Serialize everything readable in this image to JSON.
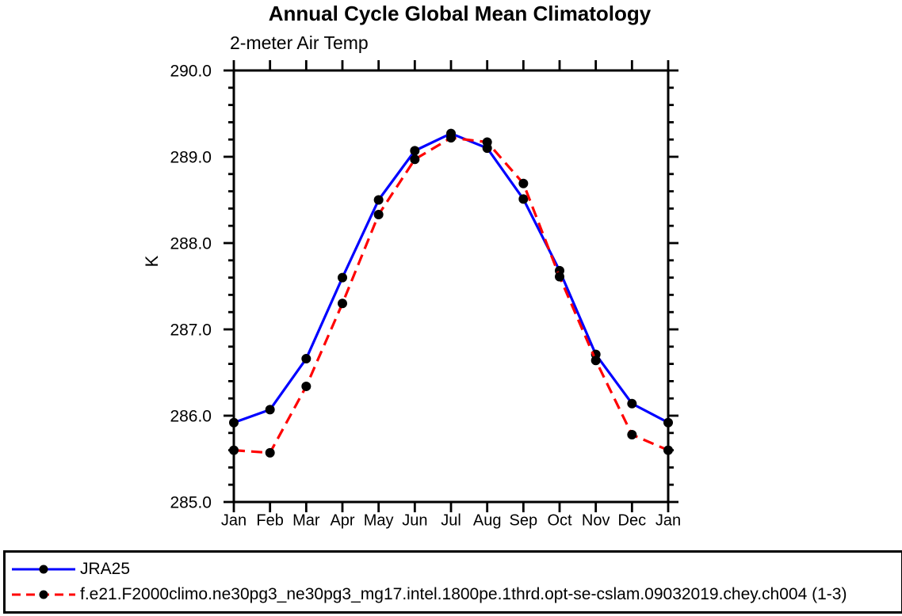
{
  "chart_data": {
    "type": "line",
    "title": "Annual Cycle Global Mean Climatology",
    "subtitle": "2-meter Air Temp",
    "xlabel": "",
    "ylabel": "K",
    "ylim": [
      285.0,
      290.0
    ],
    "y_major_step": 1.0,
    "y_minor_step": 0.2,
    "y_tick_labels": [
      "285.0",
      "286.0",
      "287.0",
      "288.0",
      "289.0",
      "290.0"
    ],
    "grid": false,
    "legend_position": "bottom-box",
    "categories": [
      "Jan",
      "Feb",
      "Mar",
      "Apr",
      "May",
      "Jun",
      "Jul",
      "Aug",
      "Sep",
      "Oct",
      "Nov",
      "Dec",
      "Jan"
    ],
    "series": [
      {
        "name": "JRA25",
        "color": "#0000ff",
        "line_style": "solid",
        "marker": "circle",
        "marker_color": "#000000",
        "values": [
          285.92,
          286.07,
          286.66,
          287.6,
          288.5,
          289.07,
          289.27,
          289.1,
          288.51,
          287.68,
          286.71,
          286.14,
          285.92
        ]
      },
      {
        "name": "f.e21.F2000climo.ne30pg3_ne30pg3_mg17.intel.1800pe.1thrd.opt-se-cslam.09032019.chey.ch004 (1-3)",
        "color": "#ff0000",
        "line_style": "dashed",
        "marker": "circle",
        "marker_color": "#000000",
        "values": [
          285.6,
          285.57,
          286.34,
          287.3,
          288.33,
          288.97,
          289.22,
          289.17,
          288.69,
          287.61,
          286.64,
          285.78,
          285.6
        ]
      }
    ],
    "axis_color": "#000000",
    "text_color": "#000000"
  }
}
